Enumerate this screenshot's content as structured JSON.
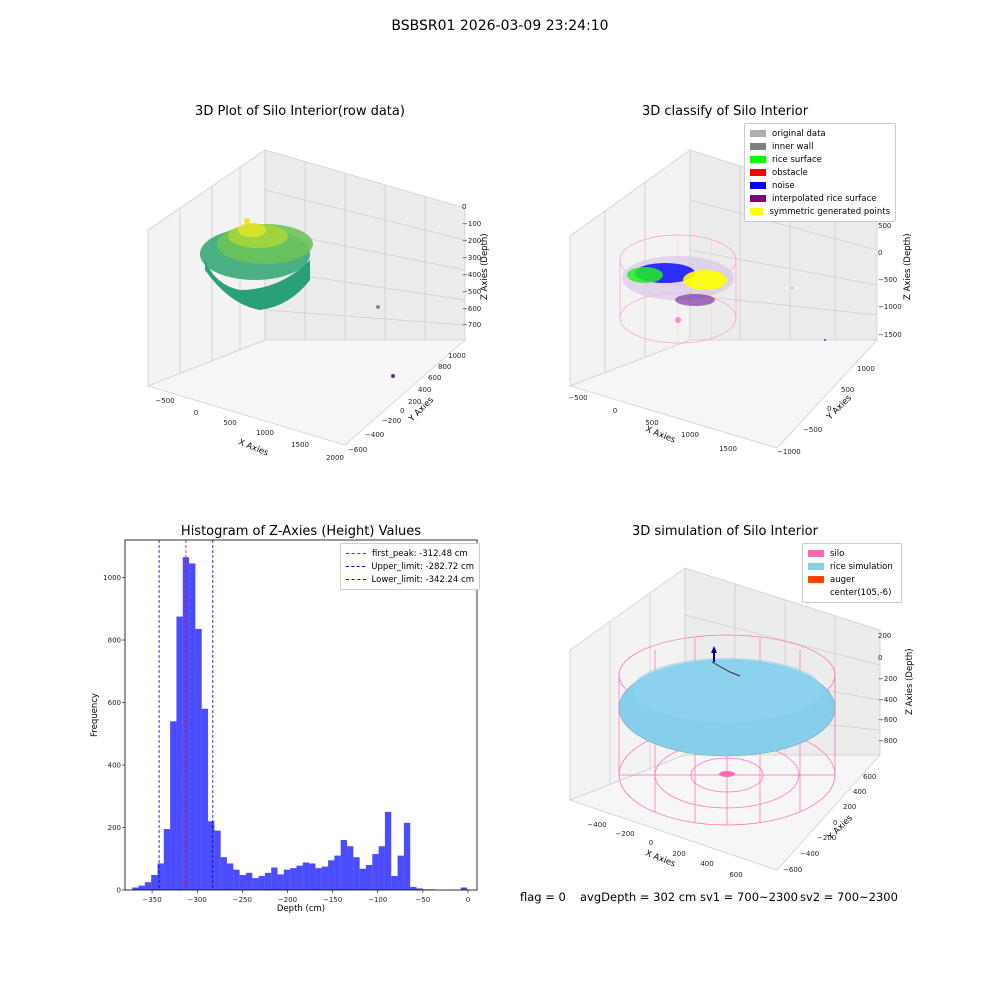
{
  "suptitle": "BSBSR01 2026-03-09 23:24:10",
  "panels": {
    "raw": {
      "title": "3D Plot of Silo Interior(row data)",
      "xlabel": "X Axies",
      "ylabel": "Y Axies",
      "zlabel": "Z Axies (Depth)",
      "xticks": [
        "−500",
        "0",
        "500",
        "1000",
        "1500",
        "2000"
      ],
      "yticks": [
        "−600",
        "−400",
        "−200",
        "0",
        "200",
        "400",
        "600",
        "800",
        "1000"
      ],
      "zticks": [
        "0",
        "−100",
        "−200",
        "−300",
        "−400",
        "−500",
        "−600",
        "−700"
      ]
    },
    "classify": {
      "title": "3D classify of Silo Interior",
      "xlabel": "X Axies",
      "ylabel": "Y Axies",
      "zlabel": "Z Axies (Depth)",
      "xticks": [
        "−500",
        "0",
        "500",
        "1000",
        "1500"
      ],
      "yticks": [
        "−1000",
        "−500",
        "0",
        "500",
        "1000"
      ],
      "zticks": [
        "500",
        "0",
        "−500",
        "−1000",
        "−1500"
      ],
      "legend": [
        {
          "label": "original data",
          "color": "#b0b0b0"
        },
        {
          "label": "inner wall",
          "color": "#808080"
        },
        {
          "label": "rice surface",
          "color": "#00ff00"
        },
        {
          "label": "obstacle",
          "color": "#ff0000"
        },
        {
          "label": "noise",
          "color": "#0000ff"
        },
        {
          "label": "interpolated rice surface",
          "color": "#800080"
        },
        {
          "label": "symmetric generated points",
          "color": "#ffff00"
        }
      ]
    },
    "simulation": {
      "title": "3D simulation of Silo Interior",
      "xlabel": "X Axies",
      "ylabel": "Y Axies",
      "zlabel": "Z Axies (Depth)",
      "xticks": [
        "−400",
        "−200",
        "0",
        "200",
        "400",
        "600"
      ],
      "yticks": [
        "−600",
        "−400",
        "−200",
        "0",
        "200",
        "400",
        "600"
      ],
      "zticks": [
        "200",
        "0",
        "−200",
        "−400",
        "−600",
        "−800"
      ],
      "legend": [
        {
          "label": "silo",
          "color": "#ff69b4"
        },
        {
          "label": "rice simulation",
          "color": "#87ceeb"
        },
        {
          "label": "auger",
          "color": "#ff4500"
        },
        {
          "label": "center(105,-6)",
          "color": ""
        }
      ]
    }
  },
  "chart_data": {
    "type": "bar",
    "title": "Histogram of Z-Axies (Height) Values",
    "xlabel": "Depth (cm)",
    "ylabel": "Frequency",
    "xlim": [
      -380,
      10
    ],
    "ylim": [
      0,
      1120
    ],
    "xticks": [
      -350,
      -300,
      -250,
      -200,
      -150,
      -100,
      -50,
      0
    ],
    "yticks": [
      0,
      200,
      400,
      600,
      800,
      1000
    ],
    "bins": [
      [
        -372,
        -365,
        8
      ],
      [
        -365,
        -358,
        14
      ],
      [
        -358,
        -351,
        25
      ],
      [
        -351,
        -344,
        48
      ],
      [
        -344,
        -337,
        85
      ],
      [
        -337,
        -330,
        195
      ],
      [
        -330,
        -323,
        540
      ],
      [
        -323,
        -316,
        875
      ],
      [
        -316,
        -309,
        1065
      ],
      [
        -309,
        -302,
        1045
      ],
      [
        -302,
        -295,
        835
      ],
      [
        -295,
        -288,
        580
      ],
      [
        -288,
        -281,
        220
      ],
      [
        -281,
        -274,
        190
      ],
      [
        -274,
        -267,
        105
      ],
      [
        -267,
        -260,
        85
      ],
      [
        -260,
        -253,
        65
      ],
      [
        -253,
        -246,
        48
      ],
      [
        -246,
        -239,
        55
      ],
      [
        -239,
        -232,
        38
      ],
      [
        -232,
        -225,
        45
      ],
      [
        -225,
        -218,
        55
      ],
      [
        -218,
        -211,
        72
      ],
      [
        -211,
        -204,
        50
      ],
      [
        -204,
        -197,
        65
      ],
      [
        -197,
        -190,
        70
      ],
      [
        -190,
        -183,
        78
      ],
      [
        -183,
        -176,
        88
      ],
      [
        -176,
        -169,
        85
      ],
      [
        -169,
        -162,
        70
      ],
      [
        -162,
        -155,
        75
      ],
      [
        -155,
        -148,
        95
      ],
      [
        -148,
        -141,
        110
      ],
      [
        -141,
        -134,
        160
      ],
      [
        -134,
        -127,
        140
      ],
      [
        -127,
        -120,
        105
      ],
      [
        -120,
        -113,
        68
      ],
      [
        -113,
        -106,
        80
      ],
      [
        -106,
        -99,
        115
      ],
      [
        -99,
        -92,
        140
      ],
      [
        -92,
        -85,
        250
      ],
      [
        -85,
        -78,
        45
      ],
      [
        -78,
        -71,
        110
      ],
      [
        -71,
        -64,
        215
      ],
      [
        -64,
        -57,
        10
      ],
      [
        -57,
        -50,
        5
      ],
      [
        -50,
        -43,
        2
      ],
      [
        -43,
        -36,
        2
      ],
      [
        -8,
        -1,
        8
      ]
    ],
    "bar_color": "#0000ff",
    "lines": [
      {
        "name": "first_peak: -312.48 cm",
        "x": -312.48,
        "color": "#ff0000"
      },
      {
        "name": "Upper_limit: -282.72 cm",
        "x": -282.72,
        "color": "#0000cc"
      },
      {
        "name": "Lower_limit: -342.24 cm",
        "x": -342.24,
        "color": "#0000cc"
      }
    ],
    "legend_position": "top-right"
  },
  "footer": {
    "flag": "flag = 0",
    "avg": "avgDepth = 302 cm",
    "sv1": "sv1 = 700~2300",
    "sv2": "sv2 = 700~2300"
  }
}
